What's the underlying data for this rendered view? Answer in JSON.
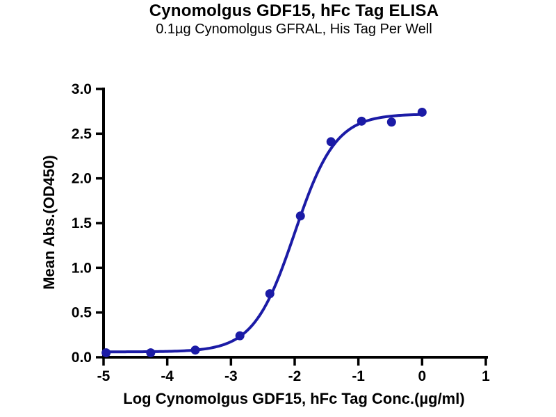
{
  "page": {
    "background": "#ffffff"
  },
  "chart_data": {
    "type": "scatter",
    "title": "Cynomolgus GDF15, hFc Tag ELISA",
    "subtitle": "0.1µg Cynomolgus GFRAL, His Tag Per Well",
    "xlabel": "Log Cynomolgus GDF15, hFc Tag Conc.(µg/ml)",
    "ylabel": "Mean Abs.(OD450)",
    "xlim": [
      -5,
      1
    ],
    "ylim": [
      0,
      3
    ],
    "grid": false,
    "legend": "none",
    "axis_color": "#000000",
    "curve_color": "#1b1ba6",
    "marker_color": "#1b1ba6",
    "x_ticks": [
      {
        "label": "-5",
        "value": -5
      },
      {
        "label": "-4",
        "value": -4
      },
      {
        "label": "-3",
        "value": -3
      },
      {
        "label": "-2",
        "value": -2
      },
      {
        "label": "-1",
        "value": -1
      },
      {
        "label": "0",
        "value": 0
      },
      {
        "label": "1",
        "value": 1
      }
    ],
    "y_ticks": [
      {
        "label": "0.0",
        "value": 0.0
      },
      {
        "label": "0.5",
        "value": 0.5
      },
      {
        "label": "1.0",
        "value": 1.0
      },
      {
        "label": "1.5",
        "value": 1.5
      },
      {
        "label": "2.0",
        "value": 2.0
      },
      {
        "label": "2.5",
        "value": 2.5
      },
      {
        "label": "3.0",
        "value": 3.0
      }
    ],
    "points": [
      {
        "x": -4.96,
        "y": 0.05
      },
      {
        "x": -4.26,
        "y": 0.05
      },
      {
        "x": -3.56,
        "y": 0.08
      },
      {
        "x": -2.86,
        "y": 0.24
      },
      {
        "x": -2.39,
        "y": 0.71
      },
      {
        "x": -1.91,
        "y": 1.58
      },
      {
        "x": -1.43,
        "y": 2.41
      },
      {
        "x": -0.95,
        "y": 2.64
      },
      {
        "x": -0.48,
        "y": 2.63
      },
      {
        "x": 0.0,
        "y": 2.74
      }
    ],
    "fit_curve": {
      "model": "4PL",
      "bottom": 0.06,
      "top": 2.72,
      "log_ec50": -2.0,
      "hill_slope": 1.35,
      "x_range": [
        -4.96,
        0.0
      ]
    }
  }
}
